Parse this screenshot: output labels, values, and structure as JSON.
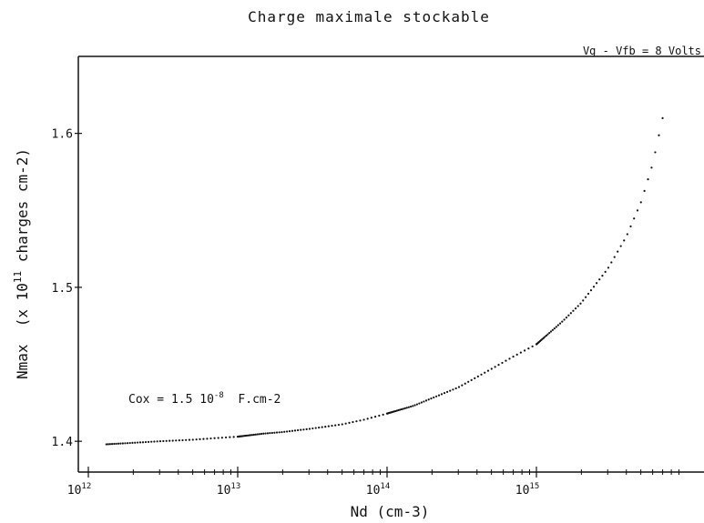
{
  "chart_data": {
    "type": "scatter",
    "title": "Charge maximale stockable",
    "subtitle": "Vg - Vfb = 8 Volts",
    "xlabel": "Nd  (cm-3)",
    "ylabel": {
      "prefix": "Nmax  (x 10",
      "exp": "11",
      "suffix": " charges cm-2)"
    },
    "x_scale": "log",
    "xlim": [
      1000000000000.0,
      7000000000000000.0
    ],
    "ylim": [
      1.38,
      1.65
    ],
    "x_ticks": [
      {
        "base": "10",
        "exp": "12",
        "value": 1000000000000.0
      },
      {
        "base": "10",
        "exp": "13",
        "value": 10000000000000.0
      },
      {
        "base": "10",
        "exp": "14",
        "value": 100000000000000.0
      },
      {
        "base": "10",
        "exp": "15",
        "value": 1000000000000000.0
      }
    ],
    "y_ticks": [
      {
        "label": "1.4",
        "value": 1.4
      },
      {
        "label": "1.5",
        "value": 1.5
      },
      {
        "label": "1.6",
        "value": 1.6
      }
    ],
    "annotation": {
      "prefix": "Cox = 1.5 10",
      "exp": "-8",
      "suffix": "  F.cm-2"
    },
    "grid": false,
    "legend": "none",
    "color": "#111111",
    "series": [
      {
        "x": [
          1300000000000.0,
          2000000000000.0,
          3000000000000.0,
          5000000000000.0,
          7000000000000.0,
          10000000000000.0,
          15000000000000.0,
          20000000000000.0,
          30000000000000.0,
          50000000000000.0,
          70000000000000.0,
          100000000000000.0,
          150000000000000.0,
          200000000000000.0,
          300000000000000.0,
          500000000000000.0,
          700000000000000.0,
          1000000000000000.0,
          1500000000000000.0,
          2000000000000000.0,
          3000000000000000.0,
          4000000000000000.0,
          5000000000000000.0,
          6000000000000000.0,
          7000000000000000.0
        ],
        "y": [
          1.398,
          1.399,
          1.4,
          1.401,
          1.402,
          1.403,
          1.405,
          1.406,
          1.408,
          1.411,
          1.414,
          1.418,
          1.423,
          1.428,
          1.435,
          1.447,
          1.455,
          1.463,
          1.478,
          1.49,
          1.512,
          1.533,
          1.555,
          1.58,
          1.61
        ]
      }
    ]
  }
}
